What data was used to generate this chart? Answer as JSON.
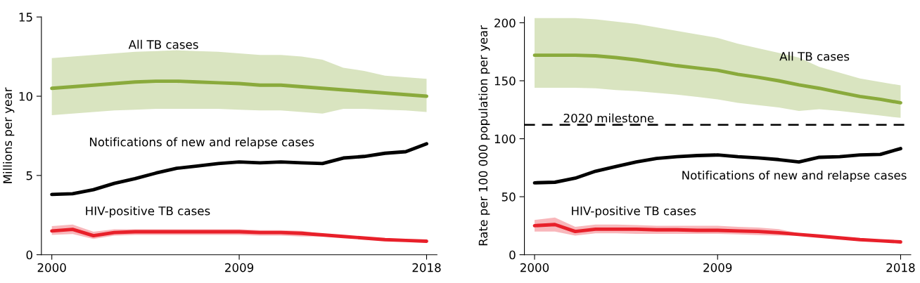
{
  "chart_data": [
    {
      "type": "line",
      "ylabel": "Millions per year",
      "x": [
        2000,
        2001,
        2002,
        2003,
        2004,
        2005,
        2006,
        2007,
        2008,
        2009,
        2010,
        2011,
        2012,
        2013,
        2014,
        2015,
        2016,
        2017,
        2018
      ],
      "xlim": [
        1999.5,
        2018.5
      ],
      "xticks": [
        2000,
        2009,
        2018
      ],
      "ylim": [
        0,
        15
      ],
      "yticks": [
        0,
        5,
        10,
        15
      ],
      "grid": false,
      "legend": false,
      "marker": "none",
      "line_style": "solid",
      "series": [
        {
          "name": "All TB cases",
          "color": "#8aaa3c",
          "values": [
            10.5,
            10.6,
            10.7,
            10.8,
            10.9,
            10.95,
            10.95,
            10.9,
            10.85,
            10.8,
            10.7,
            10.7,
            10.6,
            10.5,
            10.4,
            10.3,
            10.2,
            10.1,
            10.0
          ],
          "upper": [
            12.4,
            12.5,
            12.6,
            12.7,
            12.8,
            12.85,
            12.9,
            12.85,
            12.8,
            12.7,
            12.6,
            12.6,
            12.5,
            12.3,
            11.8,
            11.6,
            11.3,
            11.2,
            11.1
          ],
          "lower": [
            8.8,
            8.9,
            9.0,
            9.1,
            9.15,
            9.2,
            9.2,
            9.2,
            9.2,
            9.15,
            9.1,
            9.1,
            9.0,
            8.9,
            9.2,
            9.2,
            9.15,
            9.1,
            9.0
          ]
        },
        {
          "name": "Notifications of new and relapse cases",
          "color": "#000000",
          "values": [
            3.8,
            3.85,
            4.1,
            4.5,
            4.8,
            5.15,
            5.45,
            5.6,
            5.75,
            5.85,
            5.8,
            5.85,
            5.8,
            5.75,
            6.1,
            6.2,
            6.4,
            6.5,
            7.0
          ]
        },
        {
          "name": "HIV-positive TB cases",
          "color": "#e8202a",
          "values": [
            1.5,
            1.6,
            1.2,
            1.4,
            1.45,
            1.45,
            1.45,
            1.45,
            1.45,
            1.45,
            1.4,
            1.4,
            1.35,
            1.25,
            1.15,
            1.05,
            0.95,
            0.9,
            0.85
          ],
          "upper": [
            1.8,
            1.9,
            1.45,
            1.6,
            1.6,
            1.6,
            1.6,
            1.6,
            1.6,
            1.6,
            1.55,
            1.55,
            1.5,
            1.3,
            1.2,
            1.1,
            1.0,
            0.95,
            0.9
          ],
          "lower": [
            1.25,
            1.3,
            1.0,
            1.2,
            1.25,
            1.25,
            1.25,
            1.25,
            1.25,
            1.25,
            1.2,
            1.2,
            1.15,
            1.15,
            1.1,
            1.0,
            0.9,
            0.85,
            0.8
          ]
        }
      ]
    },
    {
      "type": "line",
      "ylabel": "Rate per 100 000 population per year",
      "x": [
        2000,
        2001,
        2002,
        2003,
        2004,
        2005,
        2006,
        2007,
        2008,
        2009,
        2010,
        2011,
        2012,
        2013,
        2014,
        2015,
        2016,
        2017,
        2018
      ],
      "xlim": [
        1999.5,
        2018.5
      ],
      "xticks": [
        2000,
        2009,
        2018
      ],
      "ylim": [
        0,
        205
      ],
      "yticks": [
        0,
        50,
        100,
        150,
        200
      ],
      "grid": false,
      "legend": false,
      "marker": "none",
      "line_style": "solid",
      "ref_lines": [
        {
          "axis": "y",
          "value": 112,
          "label": "2020 milestone",
          "color": "#000000",
          "line_style": "dashed"
        }
      ],
      "series": [
        {
          "name": "All TB cases",
          "color": "#8aaa3c",
          "values": [
            172,
            172,
            172,
            171.5,
            170,
            168,
            165.5,
            163,
            161,
            159,
            155.5,
            153,
            150,
            146.5,
            143.5,
            140,
            136.5,
            134,
            131
          ],
          "upper": [
            204,
            204,
            204,
            203,
            201,
            199,
            196,
            193,
            190,
            187,
            182,
            178,
            174,
            170,
            162,
            157,
            152,
            149,
            146
          ],
          "lower": [
            144,
            144,
            144,
            143.5,
            142,
            141,
            139.5,
            138,
            136,
            134,
            131,
            129,
            127,
            124,
            125.5,
            124,
            122,
            120,
            118
          ]
        },
        {
          "name": "Notifications of new and relapse cases",
          "color": "#000000",
          "values": [
            62,
            62.5,
            66,
            72,
            76,
            80,
            83,
            84.5,
            85.5,
            86,
            84.5,
            83.5,
            82,
            80,
            84,
            84.5,
            86,
            86.5,
            91.5
          ]
        },
        {
          "name": "HIV-positive TB cases",
          "color": "#e8202a",
          "values": [
            25,
            26,
            20,
            22,
            22,
            22,
            21.5,
            21.5,
            21,
            21,
            20.5,
            20,
            19,
            17.5,
            16,
            14.5,
            13,
            12,
            11
          ],
          "upper": [
            30,
            32,
            24,
            26,
            26,
            25.5,
            25,
            25,
            25,
            25,
            24,
            23.5,
            22,
            18.5,
            16.5,
            15,
            13.5,
            12.5,
            11.5
          ],
          "lower": [
            20,
            20,
            16.5,
            18.5,
            18.5,
            18,
            18,
            18,
            18,
            18,
            17.5,
            17,
            16.5,
            16.5,
            15.5,
            14,
            12.5,
            11.5,
            10.5
          ]
        }
      ]
    }
  ]
}
